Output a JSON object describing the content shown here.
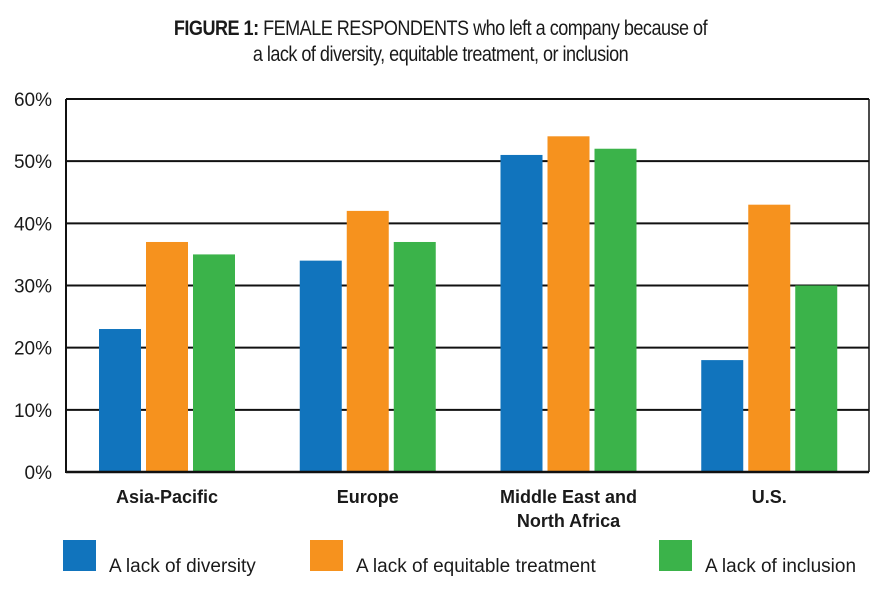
{
  "chart_data": {
    "type": "bar",
    "title_bold": "FIGURE 1:",
    "title_rest": "FEMALE RESPONDENTS who left a company because of",
    "title_line2": "a lack of diversity, equitable treatment, or inclusion",
    "categories": [
      "Asia-Pacific",
      "Europe",
      "Middle East and North Africa",
      "U.S."
    ],
    "category_lines": [
      [
        "Asia-Pacific"
      ],
      [
        "Europe"
      ],
      [
        "Middle East and",
        "North Africa"
      ],
      [
        "U.S."
      ]
    ],
    "series": [
      {
        "name": "A lack of diversity",
        "color": "#1174bd",
        "values": [
          23,
          34,
          51,
          18
        ]
      },
      {
        "name": "A lack of equitable treatment",
        "color": "#f6921e",
        "values": [
          37,
          42,
          54,
          43
        ]
      },
      {
        "name": "A lack of inclusion",
        "color": "#3bb34a",
        "values": [
          35,
          37,
          52,
          30
        ]
      }
    ],
    "ylim": [
      0,
      60
    ],
    "yticks": [
      0,
      10,
      20,
      30,
      40,
      50,
      60
    ],
    "ytick_labels": [
      "0%",
      "10%",
      "20%",
      "30%",
      "40%",
      "50%",
      "60%"
    ],
    "xlabel": "",
    "ylabel": "",
    "grid": true,
    "legend_position": "bottom"
  }
}
